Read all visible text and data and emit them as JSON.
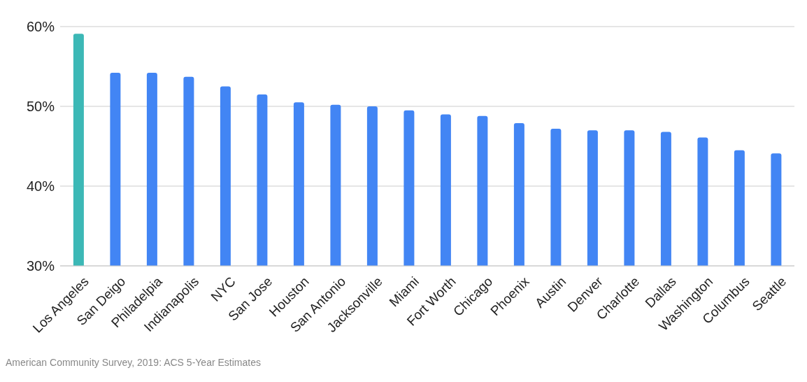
{
  "chart_data": {
    "type": "bar",
    "categories": [
      "Los Angeles",
      "San Deigo",
      "Philadelpia",
      "Indianapolis",
      "NYC",
      "San Jose",
      "Houston",
      "San Antonio",
      "Jacksonville",
      "Miami",
      "Fort Worth",
      "Chicago",
      "Phoenix",
      "Austin",
      "Denver",
      "Charlotte",
      "Dallas",
      "Washington",
      "Columbus",
      "Seattle"
    ],
    "values": [
      59.1,
      54.2,
      54.2,
      53.7,
      52.5,
      51.5,
      50.5,
      50.2,
      50.0,
      49.5,
      49.0,
      48.8,
      47.9,
      47.2,
      47.0,
      47.0,
      46.8,
      46.1,
      44.5,
      44.1
    ],
    "colors": [
      "#3cb8b6",
      "#4285f4",
      "#4285f4",
      "#4285f4",
      "#4285f4",
      "#4285f4",
      "#4285f4",
      "#4285f4",
      "#4285f4",
      "#4285f4",
      "#4285f4",
      "#4285f4",
      "#4285f4",
      "#4285f4",
      "#4285f4",
      "#4285f4",
      "#4285f4",
      "#4285f4",
      "#4285f4",
      "#4285f4"
    ],
    "ylim": [
      30,
      60
    ],
    "yticks": [
      {
        "value": 30,
        "label": "30%"
      },
      {
        "value": 40,
        "label": "40%"
      },
      {
        "value": 50,
        "label": "50%"
      },
      {
        "value": 60,
        "label": "60%"
      }
    ],
    "grid": "y",
    "annotations": [
      "American Community Survey, 2019: ACS 5-Year Estimates"
    ]
  }
}
